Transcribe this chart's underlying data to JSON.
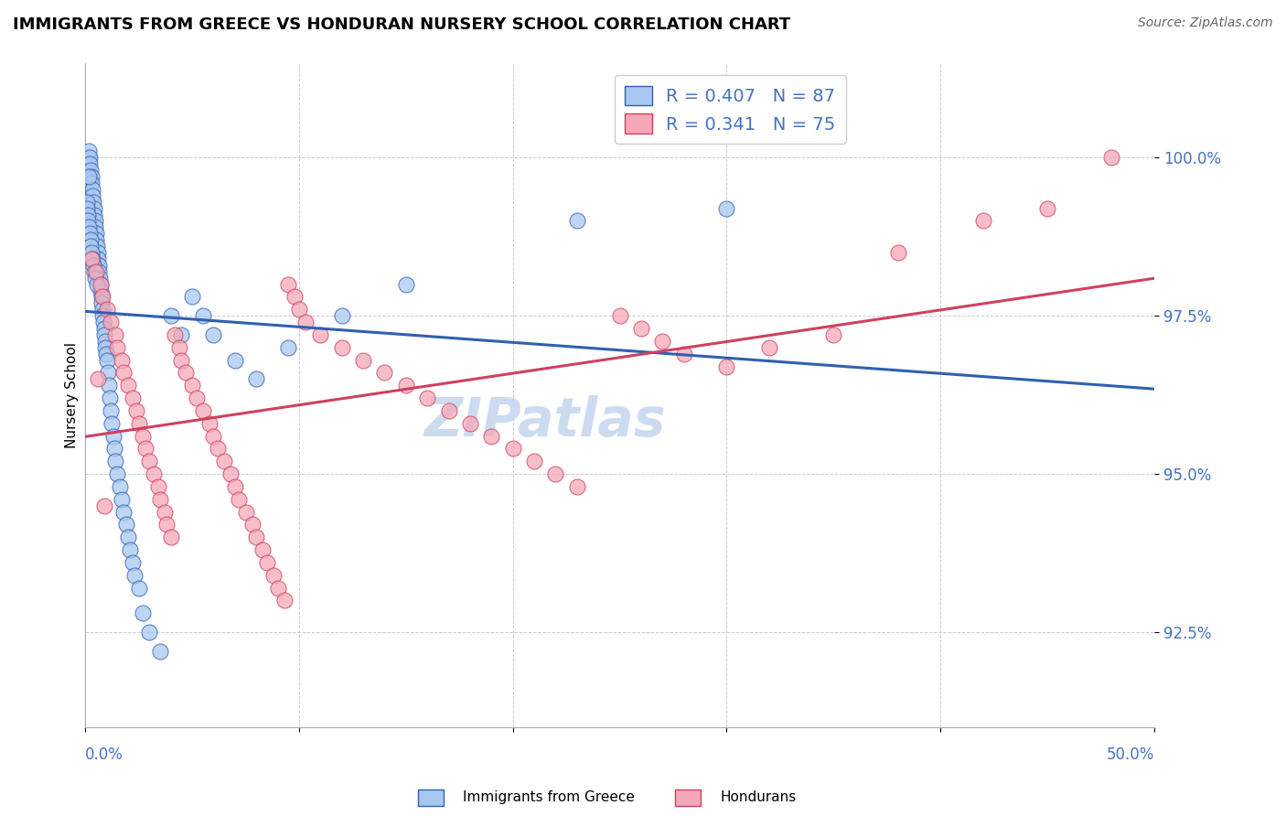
{
  "title": "IMMIGRANTS FROM GREECE VS HONDURAN NURSERY SCHOOL CORRELATION CHART",
  "source": "Source: ZipAtlas.com",
  "ylabel": "Nursery School",
  "xlim": [
    0.0,
    50.0
  ],
  "ylim": [
    91.0,
    101.5
  ],
  "yticks": [
    92.5,
    95.0,
    97.5,
    100.0
  ],
  "ytick_labels": [
    "92.5%",
    "95.0%",
    "97.5%",
    "100.0%"
  ],
  "legend_r1": "R = 0.407",
  "legend_n1": "N = 87",
  "legend_r2": "R = 0.341",
  "legend_n2": "N = 75",
  "legend_label1": "Immigrants from Greece",
  "legend_label2": "Hondurans",
  "blue_face": "#A8C8F0",
  "blue_edge": "#3060B0",
  "pink_face": "#F5A8B8",
  "pink_edge": "#D04060",
  "blue_line": "#3060B0",
  "pink_line": "#D04060",
  "watermark_color": "#C8D8F0",
  "blue_scatter_x": [
    0.05,
    0.08,
    0.1,
    0.12,
    0.15,
    0.18,
    0.2,
    0.22,
    0.25,
    0.28,
    0.3,
    0.32,
    0.35,
    0.38,
    0.4,
    0.42,
    0.45,
    0.48,
    0.5,
    0.52,
    0.55,
    0.58,
    0.6,
    0.62,
    0.65,
    0.68,
    0.7,
    0.72,
    0.75,
    0.78,
    0.8,
    0.82,
    0.85,
    0.88,
    0.9,
    0.92,
    0.95,
    0.98,
    1.0,
    1.05,
    1.1,
    1.15,
    1.2,
    1.25,
    1.3,
    1.35,
    1.4,
    1.5,
    1.6,
    1.7,
    1.8,
    1.9,
    2.0,
    2.1,
    2.2,
    2.3,
    2.5,
    2.7,
    3.0,
    3.5,
    4.0,
    4.5,
    5.0,
    5.5,
    6.0,
    7.0,
    8.0,
    9.5,
    12.0,
    15.0,
    0.06,
    0.09,
    0.11,
    0.14,
    0.17,
    0.21,
    0.24,
    0.27,
    0.31,
    0.34,
    0.37,
    0.44,
    0.47,
    0.53,
    23.0,
    30.0,
    0.16
  ],
  "blue_scatter_y": [
    99.5,
    99.6,
    99.8,
    99.9,
    100.0,
    100.1,
    100.0,
    99.9,
    99.8,
    99.7,
    99.6,
    99.5,
    99.4,
    99.3,
    99.2,
    99.1,
    99.0,
    98.9,
    98.8,
    98.7,
    98.6,
    98.5,
    98.4,
    98.3,
    98.2,
    98.1,
    98.0,
    97.9,
    97.8,
    97.7,
    97.6,
    97.5,
    97.4,
    97.3,
    97.2,
    97.1,
    97.0,
    96.9,
    96.8,
    96.6,
    96.4,
    96.2,
    96.0,
    95.8,
    95.6,
    95.4,
    95.2,
    95.0,
    94.8,
    94.6,
    94.4,
    94.2,
    94.0,
    93.8,
    93.6,
    93.4,
    93.2,
    92.8,
    92.5,
    92.2,
    97.5,
    97.2,
    97.8,
    97.5,
    97.2,
    96.8,
    96.5,
    97.0,
    97.5,
    98.0,
    99.3,
    99.2,
    99.1,
    99.0,
    98.9,
    98.8,
    98.7,
    98.6,
    98.5,
    98.4,
    98.3,
    98.2,
    98.1,
    98.0,
    99.0,
    99.2,
    99.7
  ],
  "pink_scatter_x": [
    0.3,
    0.5,
    0.7,
    0.8,
    1.0,
    1.2,
    1.4,
    1.5,
    1.7,
    1.8,
    2.0,
    2.2,
    2.4,
    2.5,
    2.7,
    2.8,
    3.0,
    3.2,
    3.4,
    3.5,
    3.7,
    3.8,
    4.0,
    4.2,
    4.4,
    4.5,
    4.7,
    5.0,
    5.2,
    5.5,
    5.8,
    6.0,
    6.2,
    6.5,
    6.8,
    7.0,
    7.2,
    7.5,
    7.8,
    8.0,
    8.3,
    8.5,
    8.8,
    9.0,
    9.3,
    9.5,
    9.8,
    10.0,
    10.3,
    11.0,
    12.0,
    13.0,
    14.0,
    15.0,
    16.0,
    17.0,
    18.0,
    19.0,
    20.0,
    21.0,
    22.0,
    23.0,
    25.0,
    26.0,
    27.0,
    28.0,
    30.0,
    32.0,
    35.0,
    38.0,
    42.0,
    45.0,
    48.0,
    0.6,
    0.9
  ],
  "pink_scatter_y": [
    98.4,
    98.2,
    98.0,
    97.8,
    97.6,
    97.4,
    97.2,
    97.0,
    96.8,
    96.6,
    96.4,
    96.2,
    96.0,
    95.8,
    95.6,
    95.4,
    95.2,
    95.0,
    94.8,
    94.6,
    94.4,
    94.2,
    94.0,
    97.2,
    97.0,
    96.8,
    96.6,
    96.4,
    96.2,
    96.0,
    95.8,
    95.6,
    95.4,
    95.2,
    95.0,
    94.8,
    94.6,
    94.4,
    94.2,
    94.0,
    93.8,
    93.6,
    93.4,
    93.2,
    93.0,
    98.0,
    97.8,
    97.6,
    97.4,
    97.2,
    97.0,
    96.8,
    96.6,
    96.4,
    96.2,
    96.0,
    95.8,
    95.6,
    95.4,
    95.2,
    95.0,
    94.8,
    97.5,
    97.3,
    97.1,
    96.9,
    96.7,
    97.0,
    97.2,
    98.5,
    99.0,
    99.2,
    100.0,
    96.5,
    94.5
  ]
}
